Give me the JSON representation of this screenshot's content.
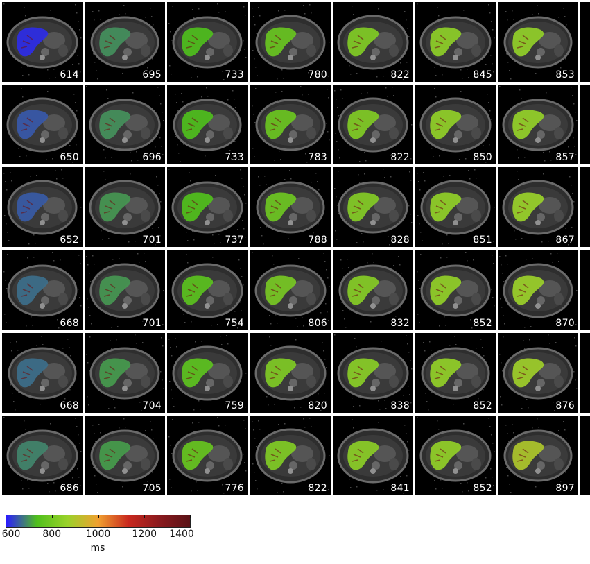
{
  "grid": {
    "columns": [
      [
        "614",
        "650",
        "652",
        "668",
        "668",
        "686"
      ],
      [
        "695",
        "696",
        "701",
        "701",
        "704",
        "705"
      ],
      [
        "733",
        "733",
        "737",
        "754",
        "759",
        "776"
      ],
      [
        "780",
        "783",
        "788",
        "806",
        "820",
        "822"
      ],
      [
        "822",
        "822",
        "828",
        "832",
        "838",
        "841"
      ],
      [
        "845",
        "850",
        "851",
        "852",
        "852",
        "852"
      ],
      [
        "853",
        "857",
        "867",
        "870",
        "876",
        "897"
      ]
    ]
  },
  "colorbar": {
    "min": 600,
    "max": 1400,
    "ticks": [
      "600",
      "800",
      "1000",
      "1200",
      "1400"
    ],
    "unit": "ms",
    "colors": [
      "#2a1bff",
      "#4fbf1c",
      "#9ad22a",
      "#f0a030",
      "#c8281e",
      "#8a1a1e",
      "#5a1216"
    ]
  }
}
